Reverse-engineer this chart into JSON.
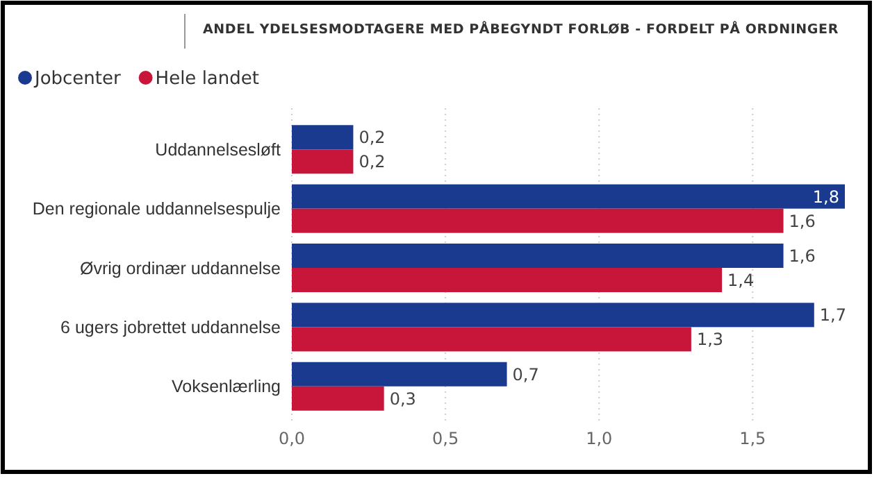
{
  "chart_data": {
    "type": "bar",
    "orientation": "horizontal",
    "title": "ANDEL YDELSESMODTAGERE MED PÅBEGYNDT FORLØB - FORDELT PÅ ORDNINGER",
    "categories": [
      "Uddannelsesløft",
      "Den regionale uddannelsespulje",
      "Øvrig ordinær uddannelse",
      "6 ugers jobrettet uddannelse",
      "Voksenlærling"
    ],
    "series": [
      {
        "name": "Jobcenter",
        "color": "#1a3a8f",
        "values": [
          0.2,
          1.8,
          1.6,
          1.7,
          0.7
        ],
        "value_labels": [
          "0,2",
          "1,8",
          "1,6",
          "1,7",
          "0,7"
        ]
      },
      {
        "name": "Hele landet",
        "color": "#c8163a",
        "values": [
          0.2,
          1.6,
          1.4,
          1.3,
          0.3
        ],
        "value_labels": [
          "0,2",
          "1,6",
          "1,4",
          "1,3",
          "0,3"
        ]
      }
    ],
    "xlim": [
      0,
      1.8
    ],
    "xticks": [
      {
        "value": 0,
        "label": "0,0"
      },
      {
        "value": 0.5,
        "label": "0,5"
      },
      {
        "value": 1,
        "label": "1,0"
      },
      {
        "value": 1.5,
        "label": "1,5"
      }
    ],
    "grid": "x",
    "legend": "top left"
  }
}
